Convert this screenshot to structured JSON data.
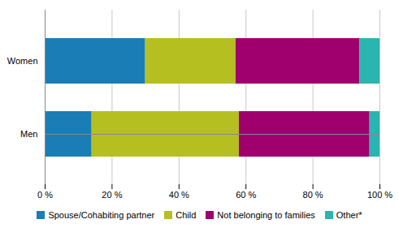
{
  "chart_data": {
    "type": "bar",
    "orientation": "horizontal",
    "stacked": true,
    "categories": [
      "Men",
      "Women"
    ],
    "series": [
      {
        "name": "Spouse/Cohabiting partner",
        "color": "#1a7db5",
        "values": [
          14,
          30
        ]
      },
      {
        "name": "Child",
        "color": "#b5c020",
        "values": [
          44,
          27
        ]
      },
      {
        "name": "Not belonging to families",
        "color": "#a0006e",
        "values": [
          39,
          37
        ]
      },
      {
        "name": "Other*",
        "color": "#2ab5b0",
        "values": [
          3,
          6
        ]
      }
    ],
    "xlim": [
      0,
      100
    ],
    "xticks": [
      {
        "value": 0,
        "label": "0 %"
      },
      {
        "value": 20,
        "label": "20 %"
      },
      {
        "value": 40,
        "label": "40 %"
      },
      {
        "value": 60,
        "label": "60 %"
      },
      {
        "value": 80,
        "label": "80 %"
      },
      {
        "value": 100,
        "label": "100 %"
      }
    ],
    "grid": true,
    "legend": "bottom"
  }
}
